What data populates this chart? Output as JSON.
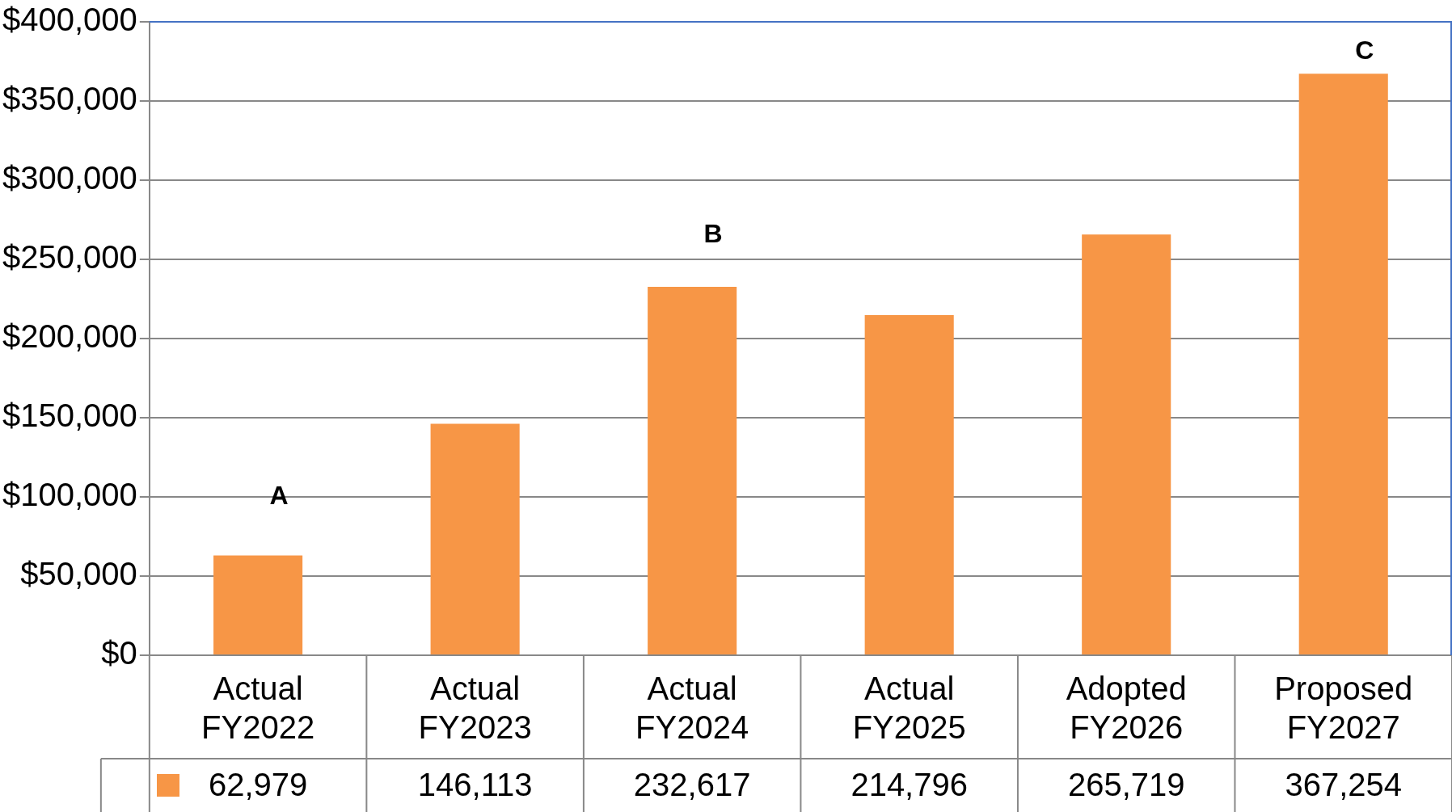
{
  "chart_data": {
    "type": "bar",
    "categories": [
      "Actual FY2022",
      "Actual FY2023",
      "Actual FY2024",
      "Actual FY2025",
      "Adopted FY2026",
      "Proposed FY2027"
    ],
    "values": [
      62979,
      146113,
      232617,
      214796,
      265719,
      367254
    ],
    "color": "#f79646",
    "ylim": [
      0,
      400000
    ],
    "yticks": [
      {
        "value": 0,
        "label": "$0"
      },
      {
        "value": 50000,
        "label": "$50,000"
      },
      {
        "value": 100000,
        "label": "$100,000"
      },
      {
        "value": 150000,
        "label": "$150,000"
      },
      {
        "value": 200000,
        "label": "$200,000"
      },
      {
        "value": 250000,
        "label": "$250,000"
      },
      {
        "value": 300000,
        "label": "$300,000"
      },
      {
        "value": 350000,
        "label": "$350,000"
      },
      {
        "value": 400000,
        "label": "$400,000"
      }
    ],
    "grid": "y",
    "legend": false,
    "value_labels": [
      "62,979",
      "146,113",
      "232,617",
      "214,796",
      "265,719",
      "367,254"
    ],
    "annotations": [
      "A",
      "B",
      "C"
    ]
  }
}
